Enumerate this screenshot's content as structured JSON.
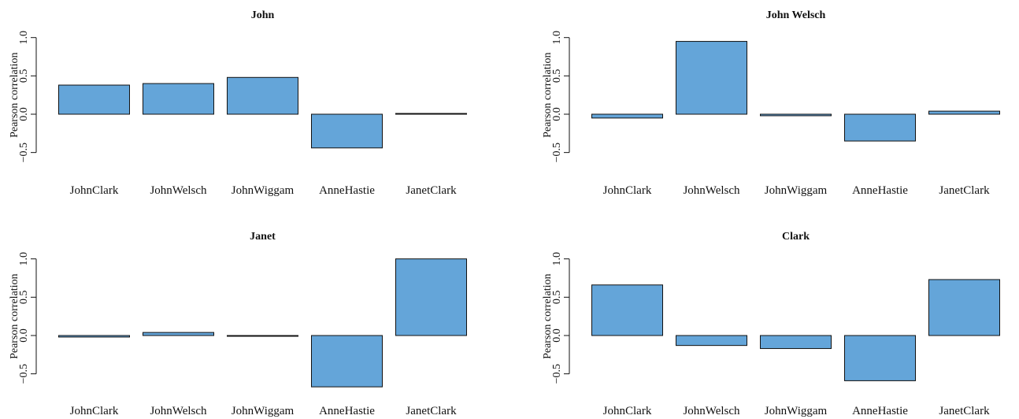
{
  "chart_data": [
    {
      "type": "bar",
      "title": "John",
      "ylabel": "Pearson correlation",
      "xlabel": "",
      "categories": [
        "JohnClark",
        "JohnWelsch",
        "JohnWiggam",
        "AnneHastie",
        "JanetClark"
      ],
      "values": [
        0.38,
        0.4,
        0.48,
        -0.44,
        0.01
      ],
      "ylim": [
        -0.5,
        1.0
      ],
      "yticks": [
        "−0.5",
        "0.0",
        "0.5",
        "1.0"
      ],
      "bar_color": "#64a5d9"
    },
    {
      "type": "bar",
      "title": "John Welsch",
      "ylabel": "Pearson correlation",
      "xlabel": "",
      "categories": [
        "JohnClark",
        "JohnWelsch",
        "JohnWiggam",
        "AnneHastie",
        "JanetClark"
      ],
      "values": [
        -0.05,
        0.95,
        -0.02,
        -0.35,
        0.04
      ],
      "ylim": [
        -0.5,
        1.0
      ],
      "yticks": [
        "−0.5",
        "0.0",
        "0.5",
        "1.0"
      ],
      "bar_color": "#64a5d9"
    },
    {
      "type": "bar",
      "title": "Janet",
      "ylabel": "Pearson correlation",
      "xlabel": "",
      "categories": [
        "JohnClark",
        "JohnWelsch",
        "JohnWiggam",
        "AnneHastie",
        "JanetClark"
      ],
      "values": [
        -0.02,
        0.04,
        0.0,
        -0.67,
        1.0
      ],
      "ylim": [
        -0.5,
        1.0
      ],
      "yticks": [
        "−0.5",
        "0.0",
        "0.5",
        "1.0"
      ],
      "bar_color": "#64a5d9"
    },
    {
      "type": "bar",
      "title": "Clark",
      "ylabel": "Pearson correlation",
      "xlabel": "",
      "categories": [
        "JohnClark",
        "JohnWelsch",
        "JohnWiggam",
        "AnneHastie",
        "JanetClark"
      ],
      "values": [
        0.66,
        -0.13,
        -0.17,
        -0.59,
        0.73
      ],
      "ylim": [
        -0.5,
        1.0
      ],
      "yticks": [
        "−0.5",
        "0.0",
        "0.5",
        "1.0"
      ],
      "bar_color": "#64a5d9"
    }
  ]
}
